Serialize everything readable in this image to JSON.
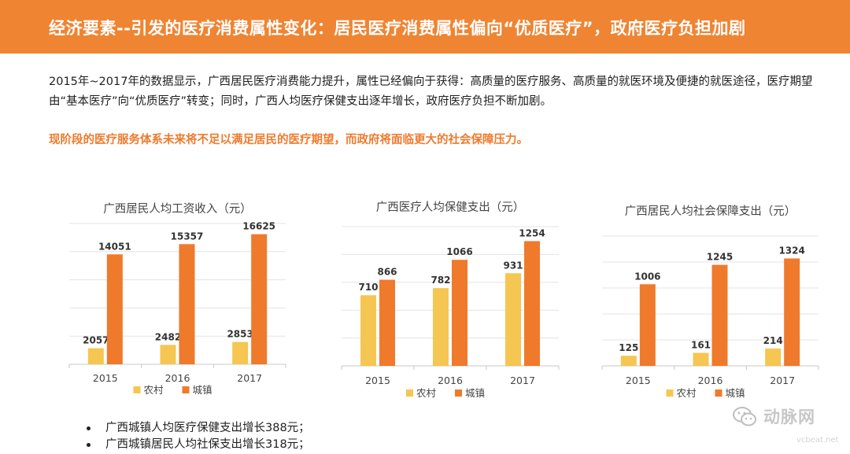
{
  "header": {
    "title": "经济要素--引发的医疗消费属性变化：居民医疗消费属性偏向“优质医疗”，政府医疗负担加剧"
  },
  "intro": {
    "text": "2015年~2017年的数据显示，广西居民医疗消费能力提升，属性已经偏向于获得：高质量的医疗服务、高质量的就医环境及便捷的就医途径，医疗期望由“基本医疗”向“优质医疗”转变；同时，广西人均医疗保健支出逐年增长，政府医疗负担不断加剧。"
  },
  "highlight": {
    "text": "现阶段的医疗服务体系未来将不足以满足居民的医疗期望，而政府将面临更大的社会保障压力。"
  },
  "colors": {
    "accent": "#ef8432",
    "rural": "#f5c651",
    "urban": "#ef7a2c",
    "highlight_text": "#ef7a2c"
  },
  "chart_data": [
    {
      "type": "bar",
      "title": "广西居民人均工资收入（元）",
      "categories": [
        "2015",
        "2016",
        "2017"
      ],
      "series": [
        {
          "name": "农村",
          "values": [
            2057,
            2482,
            2853
          ]
        },
        {
          "name": "城镇",
          "values": [
            14051,
            15357,
            16625
          ]
        }
      ],
      "ylim": [
        0,
        18000
      ],
      "grid": true,
      "legend_position": "bottom"
    },
    {
      "type": "bar",
      "title": "广西医疗人均保健支出（元）",
      "categories": [
        "2015",
        "2016",
        "2017"
      ],
      "series": [
        {
          "name": "农村",
          "values": [
            710,
            782,
            931
          ]
        },
        {
          "name": "城镇",
          "values": [
            866,
            1066,
            1254
          ]
        }
      ],
      "ylim": [
        0,
        1400
      ],
      "grid": true,
      "legend_position": "bottom"
    },
    {
      "type": "bar",
      "title": "广西居民人均社会保障支出（元）",
      "categories": [
        "2015",
        "2016",
        "2017"
      ],
      "series": [
        {
          "name": "农村",
          "values": [
            125,
            161,
            214
          ]
        },
        {
          "name": "城镇",
          "values": [
            1006,
            1245,
            1324
          ]
        }
      ],
      "ylim": [
        0,
        1600
      ],
      "grid": true,
      "legend_position": "bottom"
    }
  ],
  "bullets": [
    "广西城镇人均医疗保健支出增长388元；",
    "广西城镇居民人均社保支出增长318元；"
  ],
  "watermark": {
    "text": "动脉网",
    "url": "vcbeat.net",
    "icon": "wechat-icon"
  }
}
